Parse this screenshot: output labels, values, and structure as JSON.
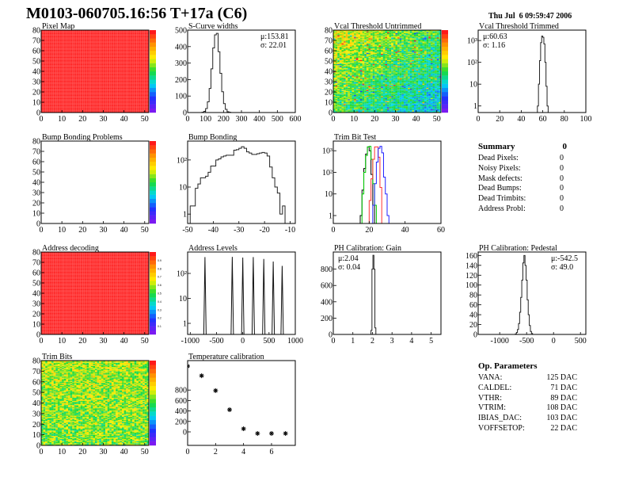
{
  "header": {
    "title": "M0103-060705.16:56 T+17a (C6)",
    "date": "Thu Jul  6 09:59:47 2006"
  },
  "summary": {
    "title": "Summary",
    "total": "0",
    "items": [
      {
        "label": "Dead Pixels:",
        "value": "0"
      },
      {
        "label": "Noisy Pixels:",
        "value": "0"
      },
      {
        "label": "Mask defects:",
        "value": "0"
      },
      {
        "label": "Dead Bumps:",
        "value": "0"
      },
      {
        "label": "Dead Trimbits:",
        "value": "0"
      },
      {
        "label": "Address Probl:",
        "value": "0"
      }
    ]
  },
  "op_parameters": {
    "title": "Op. Parameters",
    "items": [
      {
        "label": "VANA:",
        "value": "125 DAC"
      },
      {
        "label": "CALDEL:",
        "value": "71 DAC"
      },
      {
        "label": "VTHR:",
        "value": "89 DAC"
      },
      {
        "label": "VTRIM:",
        "value": "108 DAC"
      },
      {
        "label": "IBIAS_DAC:",
        "value": "103 DAC"
      },
      {
        "label": "VOFFSETOP:",
        "value": "22 DAC"
      }
    ]
  },
  "colors": {
    "black": "#000000",
    "green": "#00cc00",
    "red": "#ff3333",
    "blue": "#2222ff",
    "hist": "#333333"
  },
  "chart_data": [
    {
      "id": "pixel_map",
      "type": "heatmap",
      "title": "Pixel Map",
      "xlim": [
        0,
        52
      ],
      "ylim": [
        0,
        80
      ],
      "xticks": [
        0,
        10,
        20,
        30,
        40,
        50
      ],
      "yticks": [
        0,
        10,
        20,
        30,
        40,
        50,
        60,
        70,
        80
      ],
      "pattern": "uniform-max",
      "colorbar": true
    },
    {
      "id": "scurve_widths",
      "type": "bar",
      "title": "S-Curve widths",
      "xlim": [
        0,
        600
      ],
      "ylim": [
        0,
        500
      ],
      "xticks": [
        0,
        100,
        200,
        300,
        400,
        500,
        600
      ],
      "yticks": [
        0,
        100,
        200,
        300,
        400,
        500
      ],
      "stats": [
        "μ:153.81",
        "σ: 22.01"
      ],
      "stats_pos": "top-right",
      "series": [
        {
          "lo": 70,
          "width": 10,
          "counts": [
            0,
            2,
            7,
            24,
            65,
            146,
            265,
            392,
            471,
            480,
            369,
            238,
            126,
            54,
            19,
            5,
            2
          ]
        }
      ]
    },
    {
      "id": "vcal_untrimmed",
      "type": "heatmap",
      "title": "Vcal Threshold Untrimmed",
      "xlim": [
        0,
        52
      ],
      "ylim": [
        0,
        80
      ],
      "xticks": [
        0,
        10,
        20,
        30,
        40,
        50
      ],
      "yticks": [
        0,
        10,
        20,
        30,
        40,
        50,
        60,
        70,
        80
      ],
      "pattern": "noisy-gradient",
      "colorbar": true
    },
    {
      "id": "vcal_trimmed",
      "type": "bar",
      "title": "Vcal Threshold Trimmed",
      "xlim": [
        0,
        100
      ],
      "ylim": [
        0.5,
        3000
      ],
      "log_y": true,
      "xticks": [
        0,
        20,
        40,
        60,
        80,
        100
      ],
      "yticks": [
        1,
        10,
        100,
        1000
      ],
      "yticklabels": [
        "1",
        "10",
        "10²",
        "10³"
      ],
      "stats": [
        "μ:60.63",
        "σ: 1.16"
      ],
      "stats_pos": "top-left",
      "series": [
        {
          "lo": 55,
          "width": 1,
          "counts": [
            1,
            10,
            120,
            800,
            1600,
            1400,
            700,
            100,
            8,
            1
          ]
        }
      ]
    },
    {
      "id": "bump_bonding_problems",
      "type": "heatmap",
      "title": "Bump Bonding Problems",
      "xlim": [
        0,
        52
      ],
      "ylim": [
        0,
        80
      ],
      "xticks": [
        0,
        10,
        20,
        30,
        40,
        50
      ],
      "yticks": [
        0,
        10,
        20,
        30,
        40,
        50,
        60,
        70,
        80
      ],
      "pattern": "empty",
      "colorbar": true
    },
    {
      "id": "bump_bonding",
      "type": "bar",
      "title": "Bump Bonding",
      "xlim": [
        -50,
        -8
      ],
      "ylim": [
        0.45,
        500
      ],
      "log_y": true,
      "xticks": [
        -50,
        -40,
        -30,
        -20,
        -10
      ],
      "yticks": [
        1,
        10,
        100
      ],
      "yticklabels": [
        "1",
        "10",
        "10²"
      ],
      "series": [
        {
          "lo": -49,
          "width": 1,
          "counts": [
            2,
            2,
            9,
            13,
            22,
            22,
            25,
            35,
            60,
            60,
            100,
            110,
            130,
            140,
            150,
            150,
            150,
            230,
            240,
            270,
            310,
            270,
            200,
            180,
            160,
            160,
            170,
            180,
            190,
            180,
            140,
            55,
            22,
            10,
            6,
            1,
            2,
            0
          ]
        }
      ]
    },
    {
      "id": "trim_bit_test",
      "type": "bar",
      "title": "Trim Bit Test",
      "xlim": [
        0,
        60
      ],
      "ylim": [
        0.43,
        2800
      ],
      "log_y": true,
      "xticks": [
        0,
        20,
        40,
        60
      ],
      "yticks": [
        1,
        10,
        100,
        1000
      ],
      "yticklabels": [
        "1",
        "10",
        "10²",
        "10³"
      ],
      "series": [
        {
          "color": "#000000",
          "lo": 15,
          "width": 1,
          "counts": [
            1,
            15,
            150,
            700,
            1500,
            1000,
            80,
            3
          ]
        },
        {
          "color": "#00cc00",
          "lo": 16,
          "width": 1,
          "counts": [
            10,
            100,
            600,
            1500,
            1600,
            400,
            30,
            3
          ]
        },
        {
          "color": "#ff3333",
          "lo": 20,
          "width": 1,
          "counts": [
            5,
            50,
            400,
            1500,
            1500,
            500,
            20
          ]
        },
        {
          "color": "#2222ff",
          "lo": 22,
          "width": 1,
          "counts": [
            3,
            30,
            300,
            1300,
            1600,
            800,
            60,
            10,
            1
          ]
        }
      ]
    },
    {
      "id": "address_decoding",
      "type": "heatmap",
      "title": "Address decoding",
      "xlim": [
        0,
        52
      ],
      "ylim": [
        0,
        80
      ],
      "xticks": [
        0,
        10,
        20,
        30,
        40,
        50
      ],
      "yticks": [
        0,
        10,
        20,
        30,
        40,
        50,
        60,
        70,
        80
      ],
      "pattern": "uniform-max",
      "colorbar": true,
      "zticks": [
        "0",
        "0.1",
        "0.2",
        "0.3",
        "0.4",
        "0.5",
        "0.6",
        "0.7",
        "0.8",
        "0.9",
        "1"
      ]
    },
    {
      "id": "address_levels",
      "type": "bar",
      "title": "Address Levels",
      "xlim": [
        -1050,
        1000
      ],
      "ylim": [
        0.36,
        720
      ],
      "log_y": true,
      "xticks": [
        -1000,
        -500,
        0,
        500,
        1000
      ],
      "yticks": [
        1,
        10,
        100
      ],
      "yticklabels": [
        "1",
        "10",
        "10²"
      ],
      "peaks": [
        {
          "x": -720,
          "y": 450
        },
        {
          "x": -200,
          "y": 460
        },
        {
          "x": 0,
          "y": 430
        },
        {
          "x": 200,
          "y": 450
        },
        {
          "x": 400,
          "y": 380
        },
        {
          "x": 580,
          "y": 300
        },
        {
          "x": 750,
          "y": 200
        }
      ]
    },
    {
      "id": "ph_gain",
      "type": "bar",
      "title": "PH Calibration: Gain",
      "xlim": [
        0,
        5.5
      ],
      "ylim": [
        0,
        1010
      ],
      "xticks": [
        0,
        1,
        2,
        3,
        4,
        5
      ],
      "yticks": [
        0,
        200,
        400,
        600,
        800
      ],
      "stats": [
        "μ:2.04",
        "σ: 0.04"
      ],
      "stats_pos": "top-left",
      "series": [
        {
          "lo": 1.925,
          "width": 0.05,
          "counts": [
            50,
            800,
            970,
            800,
            80
          ]
        }
      ]
    },
    {
      "id": "ph_pedestal",
      "type": "bar",
      "title": "PH Calibration: Pedestal",
      "xlim": [
        -1400,
        600
      ],
      "ylim": [
        0,
        167
      ],
      "xticks": [
        -1000,
        -500,
        0,
        500
      ],
      "yticks": [
        0,
        20,
        40,
        60,
        80,
        100,
        120,
        140,
        160
      ],
      "stats": [
        "μ:-542.5",
        "σ: 49.0"
      ],
      "stats_pos": "top-right",
      "series": [
        {
          "lo": -710,
          "width": 20,
          "counts": [
            1,
            4,
            10,
            22,
            45,
            75,
            110,
            145,
            160,
            140,
            110,
            70,
            40,
            18,
            6,
            2
          ]
        }
      ]
    },
    {
      "id": "trim_bits",
      "type": "heatmap",
      "title": "Trim Bits",
      "xlim": [
        0,
        52
      ],
      "ylim": [
        0,
        80
      ],
      "xticks": [
        0,
        10,
        20,
        30,
        40,
        50
      ],
      "yticks": [
        0,
        10,
        20,
        30,
        40,
        50,
        60,
        70,
        80
      ],
      "pattern": "noisy-green",
      "colorbar": true
    },
    {
      "id": "temperature_calibration",
      "type": "scatter",
      "title": "Temperature calibration",
      "xlim": [
        0,
        7.7
      ],
      "ylim": [
        -258,
        1364
      ],
      "xticks": [
        0,
        2,
        4,
        6
      ],
      "yticks": [
        0,
        200,
        400,
        600,
        800
      ],
      "x": [
        0,
        1,
        2,
        3,
        4,
        5,
        6,
        7
      ],
      "y": [
        1257,
        1075,
        790,
        424,
        60,
        -30,
        -30,
        -30
      ]
    }
  ]
}
